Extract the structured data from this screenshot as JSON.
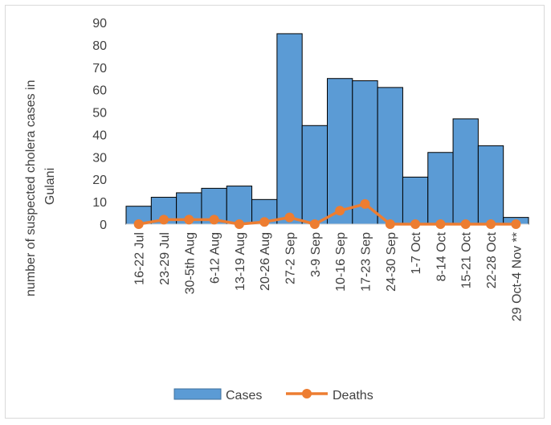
{
  "chart_data": {
    "type": "bar",
    "categories": [
      "16-22 Jul",
      "23-29 Jul",
      "30-5th Aug",
      "6-12 Aug",
      "13-19 Aug",
      "20-26 Aug",
      "27-2 Sep",
      "3-9 Sep",
      "10-16 Sep",
      "17-23 Sep",
      "24-30 Sep",
      "1-7 Oct",
      "8-14 Oct",
      "15-21 Oct",
      "22-28 Oct",
      "29 Oct-4 Nov **"
    ],
    "series": [
      {
        "name": "Cases",
        "type": "bar",
        "color": "#5b9bd5",
        "values": [
          8,
          12,
          14,
          16,
          17,
          11,
          85,
          44,
          65,
          64,
          61,
          21,
          32,
          47,
          35,
          3
        ]
      },
      {
        "name": "Deaths",
        "type": "line",
        "color": "#ed7d31",
        "values": [
          0,
          2,
          2,
          2,
          0,
          1,
          3,
          0,
          6,
          9,
          0,
          0,
          0,
          0,
          0,
          0
        ]
      }
    ],
    "ylabel_lines": [
      "number of suspected cholera cases in",
      "Gulani"
    ],
    "xlabel": "",
    "ylim": [
      0,
      90
    ],
    "yticks": [
      0,
      10,
      20,
      30,
      40,
      50,
      60,
      70,
      80,
      90
    ],
    "grid": false,
    "legend": "bottom"
  }
}
